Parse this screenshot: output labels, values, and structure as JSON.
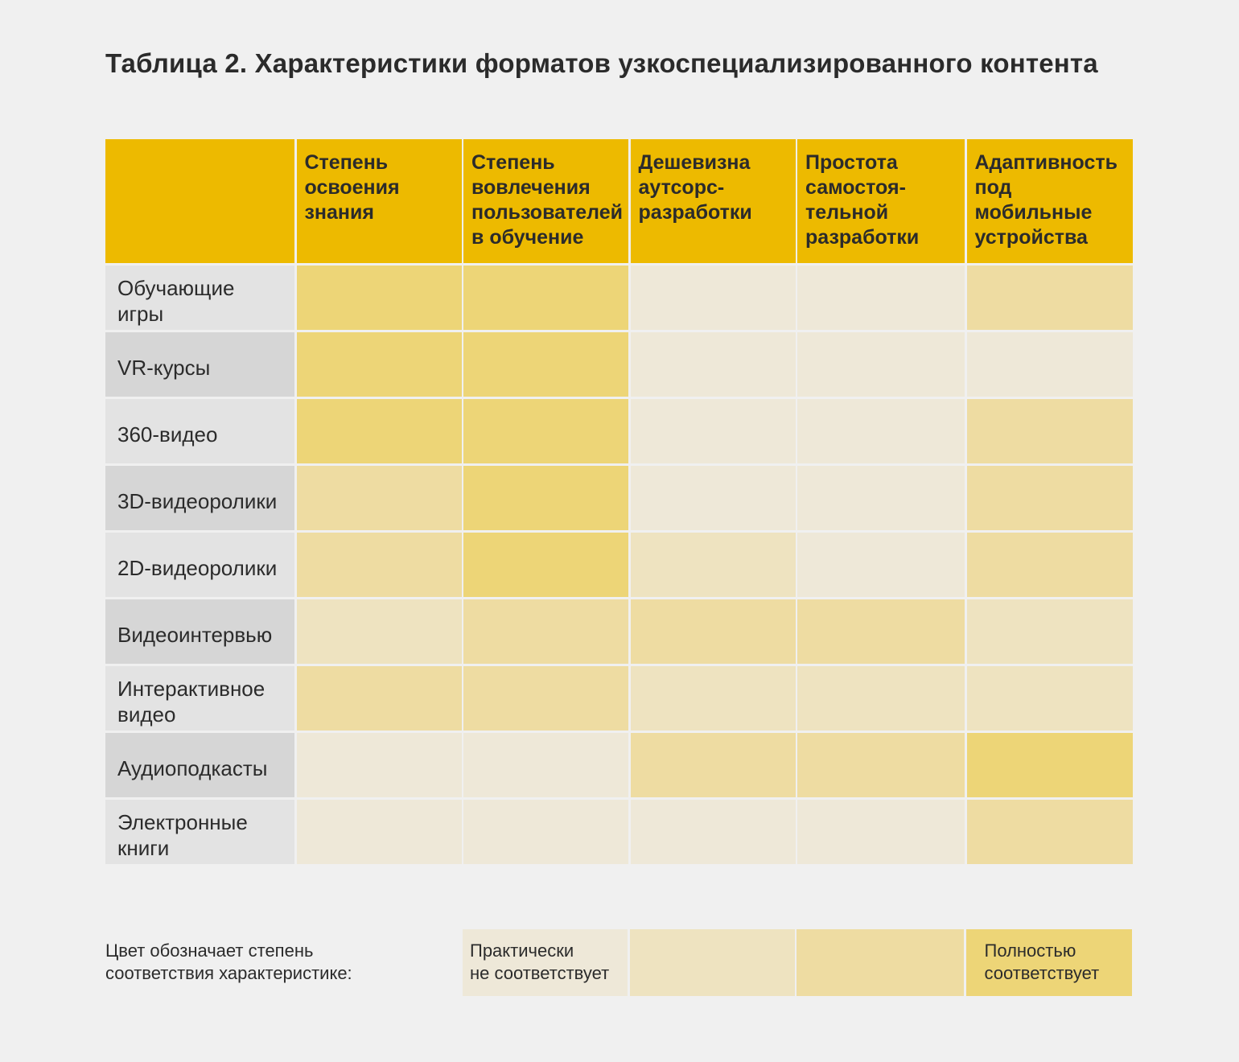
{
  "title": "Таблица 2. Характеристики форматов узкоспециализированного контента",
  "colors": {
    "header": "#edba00",
    "levels": [
      "#eee8d8",
      "#eee3c0",
      "#eedca2",
      "#edd577"
    ]
  },
  "chart_data": {
    "type": "heatmap",
    "title": "Таблица 2. Характеристики форматов узкоспециализированного контента",
    "columns": [
      "Степень освоения знания",
      "Степень вовлечения пользователей в обучение",
      "Дешевизна аутсорс-разработки",
      "Простота самостоя-тельной разработки",
      "Адаптивность под мобильные устройства"
    ],
    "rows": [
      "Обучающие игры",
      "VR-курсы",
      "360-видео",
      "3D-видеоролики",
      "2D-видеоролики",
      "Видеоинтервью",
      "Интерактивное видео",
      "Аудиоподкасты",
      "Электронные книги"
    ],
    "scale": [
      1,
      4
    ],
    "values": [
      [
        4,
        4,
        1,
        1,
        3
      ],
      [
        4,
        4,
        1,
        1,
        1
      ],
      [
        4,
        4,
        1,
        1,
        3
      ],
      [
        3,
        4,
        1,
        1,
        3
      ],
      [
        3,
        4,
        2,
        1,
        3
      ],
      [
        2,
        3,
        3,
        3,
        2
      ],
      [
        3,
        3,
        2,
        2,
        2
      ],
      [
        1,
        1,
        3,
        3,
        4
      ],
      [
        1,
        1,
        1,
        1,
        3
      ]
    ]
  },
  "header_labels": [
    "Степень\nосвоения\nзнания",
    "Степень\nвовлечения\nпользователей\nв обучение",
    "Дешевизна\nаутсорс-\nразработки",
    "Простота\nсамостоя-\nтельной\nразработки",
    "Адаптивность\nпод\nмобильные\nустройства"
  ],
  "row_labels": [
    "Обучающие\nигры",
    "VR-курсы",
    "360-видео",
    "3D-видеоролики",
    "2D-видеоролики",
    "Видеоинтервью",
    "Интерактивное\nвидео",
    "Аудиоподкасты",
    "Электронные\nкниги"
  ],
  "legend": {
    "label": "Цвет обозначает степень\nсоответствия характеристике:",
    "min_label": "Практически\nне соответствует",
    "max_label": "Полностью\nсоответствует"
  }
}
